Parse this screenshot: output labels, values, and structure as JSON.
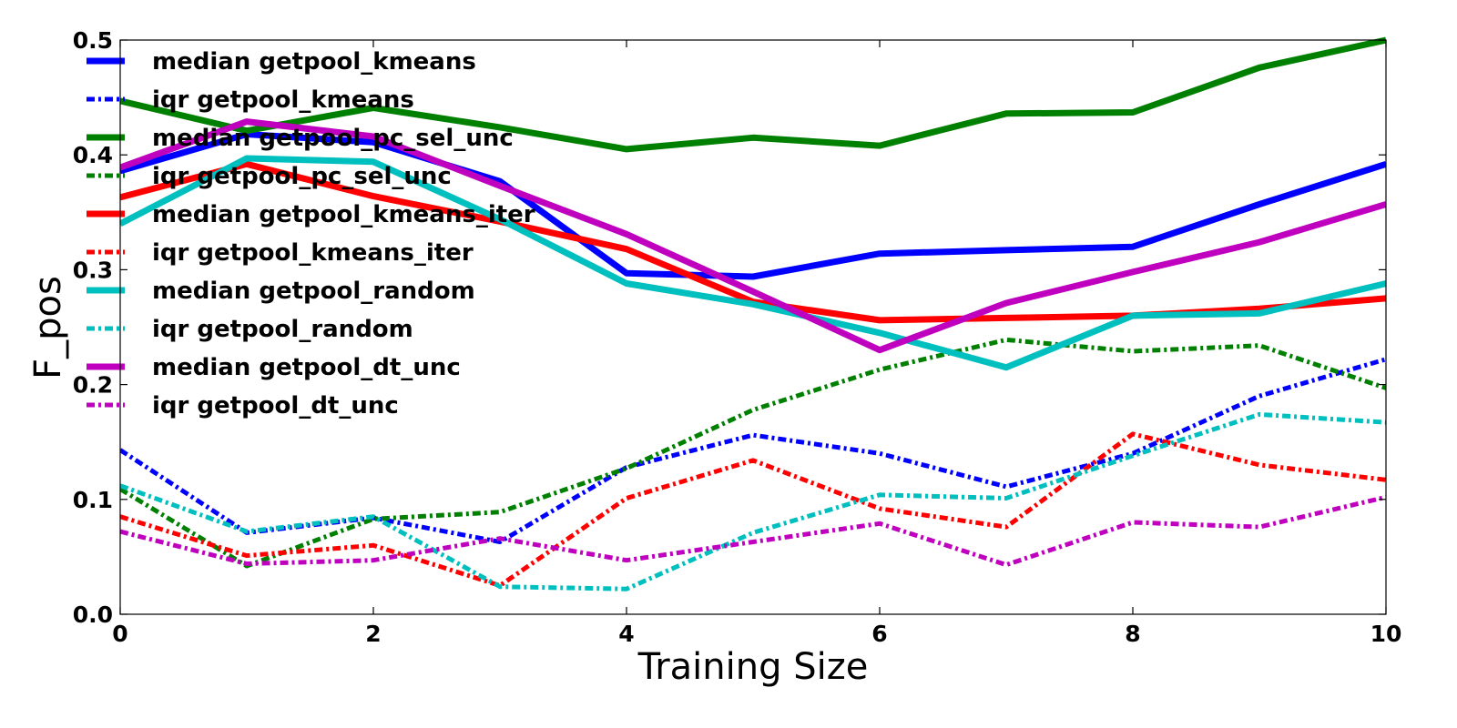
{
  "chart_data": {
    "type": "line",
    "title": "",
    "xlabel": "Training Size",
    "ylabel": "F_pos",
    "xlim": [
      0,
      10
    ],
    "ylim": [
      0,
      0.5
    ],
    "x_ticks": [
      "0",
      "2",
      "4",
      "6",
      "8",
      "10"
    ],
    "y_ticks": [
      "0.0",
      "0.1",
      "0.2",
      "0.3",
      "0.4",
      "0.5"
    ],
    "grid": false,
    "legend_position": "upper-left",
    "x": [
      0,
      1,
      2,
      3,
      4,
      5,
      6,
      7,
      8,
      9,
      10
    ],
    "series": [
      {
        "name": "median getpool_kmeans",
        "color": "#0000ff",
        "style": "solid",
        "values": [
          0.386,
          0.418,
          0.411,
          0.377,
          0.297,
          0.294,
          0.314,
          0.317,
          0.32,
          0.357,
          0.392
        ]
      },
      {
        "name": "iqr getpool_kmeans",
        "color": "#0000ff",
        "style": "dashdot",
        "values": [
          0.143,
          0.071,
          0.084,
          0.063,
          0.128,
          0.156,
          0.14,
          0.111,
          0.14,
          0.19,
          0.222
        ]
      },
      {
        "name": "median getpool_pc_sel_unc",
        "color": "#008000",
        "style": "solid",
        "values": [
          0.447,
          0.421,
          0.441,
          0.424,
          0.405,
          0.415,
          0.408,
          0.436,
          0.437,
          0.476,
          0.5
        ]
      },
      {
        "name": "iqr getpool_pc_sel_unc",
        "color": "#008000",
        "style": "dashdot",
        "values": [
          0.109,
          0.042,
          0.083,
          0.089,
          0.127,
          0.178,
          0.213,
          0.239,
          0.229,
          0.234,
          0.197
        ]
      },
      {
        "name": "median getpool_kmeans_iter",
        "color": "#ff0000",
        "style": "solid",
        "values": [
          0.363,
          0.392,
          0.364,
          0.342,
          0.318,
          0.272,
          0.256,
          0.258,
          0.26,
          0.266,
          0.275
        ]
      },
      {
        "name": "iqr getpool_kmeans_iter",
        "color": "#ff0000",
        "style": "dashdot",
        "values": [
          0.085,
          0.051,
          0.06,
          0.025,
          0.101,
          0.134,
          0.092,
          0.076,
          0.157,
          0.13,
          0.117
        ]
      },
      {
        "name": "median getpool_random",
        "color": "#00bfbf",
        "style": "solid",
        "values": [
          0.34,
          0.397,
          0.394,
          0.344,
          0.288,
          0.27,
          0.245,
          0.215,
          0.26,
          0.262,
          0.288
        ]
      },
      {
        "name": "iqr getpool_random",
        "color": "#00bfbf",
        "style": "dashdot",
        "values": [
          0.112,
          0.072,
          0.085,
          0.024,
          0.022,
          0.071,
          0.104,
          0.101,
          0.138,
          0.174,
          0.167
        ]
      },
      {
        "name": "median getpool_dt_unc",
        "color": "#bf00bf",
        "style": "solid",
        "values": [
          0.389,
          0.429,
          0.416,
          0.373,
          0.331,
          0.281,
          0.23,
          0.271,
          0.298,
          0.324,
          0.357
        ]
      },
      {
        "name": "iqr getpool_dt_unc",
        "color": "#bf00bf",
        "style": "dashdot",
        "values": [
          0.072,
          0.044,
          0.047,
          0.066,
          0.047,
          0.063,
          0.079,
          0.043,
          0.08,
          0.076,
          0.102
        ]
      }
    ]
  }
}
